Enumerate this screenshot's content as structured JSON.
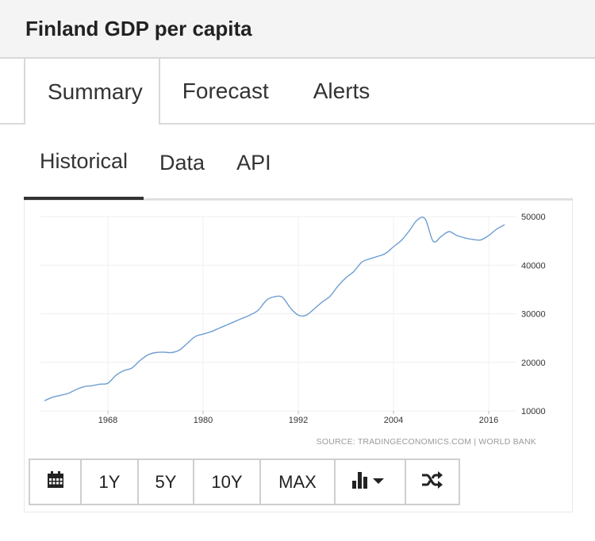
{
  "header": {
    "title": "Finland GDP per capita"
  },
  "tabs_primary": [
    {
      "label": "Summary",
      "active": true
    },
    {
      "label": "Forecast",
      "active": false
    },
    {
      "label": "Alerts",
      "active": false
    }
  ],
  "tabs_secondary": [
    {
      "label": "Historical",
      "active": true
    },
    {
      "label": "Data",
      "active": false
    },
    {
      "label": "API",
      "active": false
    }
  ],
  "toolbar": {
    "buttons": [
      {
        "label": "",
        "icon": "calendar-icon"
      },
      {
        "label": "1Y"
      },
      {
        "label": "5Y"
      },
      {
        "label": "10Y"
      },
      {
        "label": "MAX"
      },
      {
        "label": "",
        "icon": "bar-chart-dropdown-icon"
      },
      {
        "label": "",
        "icon": "shuffle-icon"
      }
    ]
  },
  "chart_data": {
    "type": "line",
    "title": "",
    "xlabel": "",
    "ylabel": "",
    "source": "SOURCE: TRADINGECONOMICS.COM | WORLD BANK",
    "line_color": "#6f9ed2",
    "x_ticks": [
      1968,
      1980,
      1992,
      2004,
      2016
    ],
    "y_ticks": [
      10000,
      20000,
      30000,
      40000,
      50000
    ],
    "xlim": [
      1959.5,
      2019.5
    ],
    "ylim": [
      10000,
      50000
    ],
    "y_axis_position": "right",
    "grid": true,
    "series": [
      {
        "x": [
          1960,
          1961,
          1962,
          1963,
          1964,
          1965,
          1966,
          1967,
          1968,
          1969,
          1970,
          1971,
          1972,
          1973,
          1974,
          1975,
          1976,
          1977,
          1978,
          1979,
          1980,
          1981,
          1982,
          1983,
          1984,
          1985,
          1986,
          1987,
          1988,
          1989,
          1990,
          1991,
          1992,
          1993,
          1994,
          1995,
          1996,
          1997,
          1998,
          1999,
          2000,
          2001,
          2002,
          2003,
          2004,
          2005,
          2006,
          2007,
          2008,
          2009,
          2010,
          2011,
          2012,
          2013,
          2014,
          2015,
          2016,
          2017,
          2018
        ],
        "y": [
          12100,
          12800,
          13200,
          13600,
          14400,
          15000,
          15200,
          15500,
          15700,
          17300,
          18300,
          18800,
          20300,
          21500,
          22000,
          22100,
          22000,
          22500,
          23900,
          25300,
          25800,
          26300,
          27000,
          27700,
          28400,
          29100,
          29800,
          30800,
          32800,
          33500,
          33400,
          31200,
          29700,
          29700,
          31000,
          32400,
          33600,
          35700,
          37400,
          38700,
          40600,
          41300,
          41800,
          42400,
          43800,
          45100,
          47100,
          49300,
          49500,
          44900,
          45900,
          46900,
          46100,
          45600,
          45300,
          45200,
          46100,
          47400,
          48300
        ]
      }
    ]
  }
}
